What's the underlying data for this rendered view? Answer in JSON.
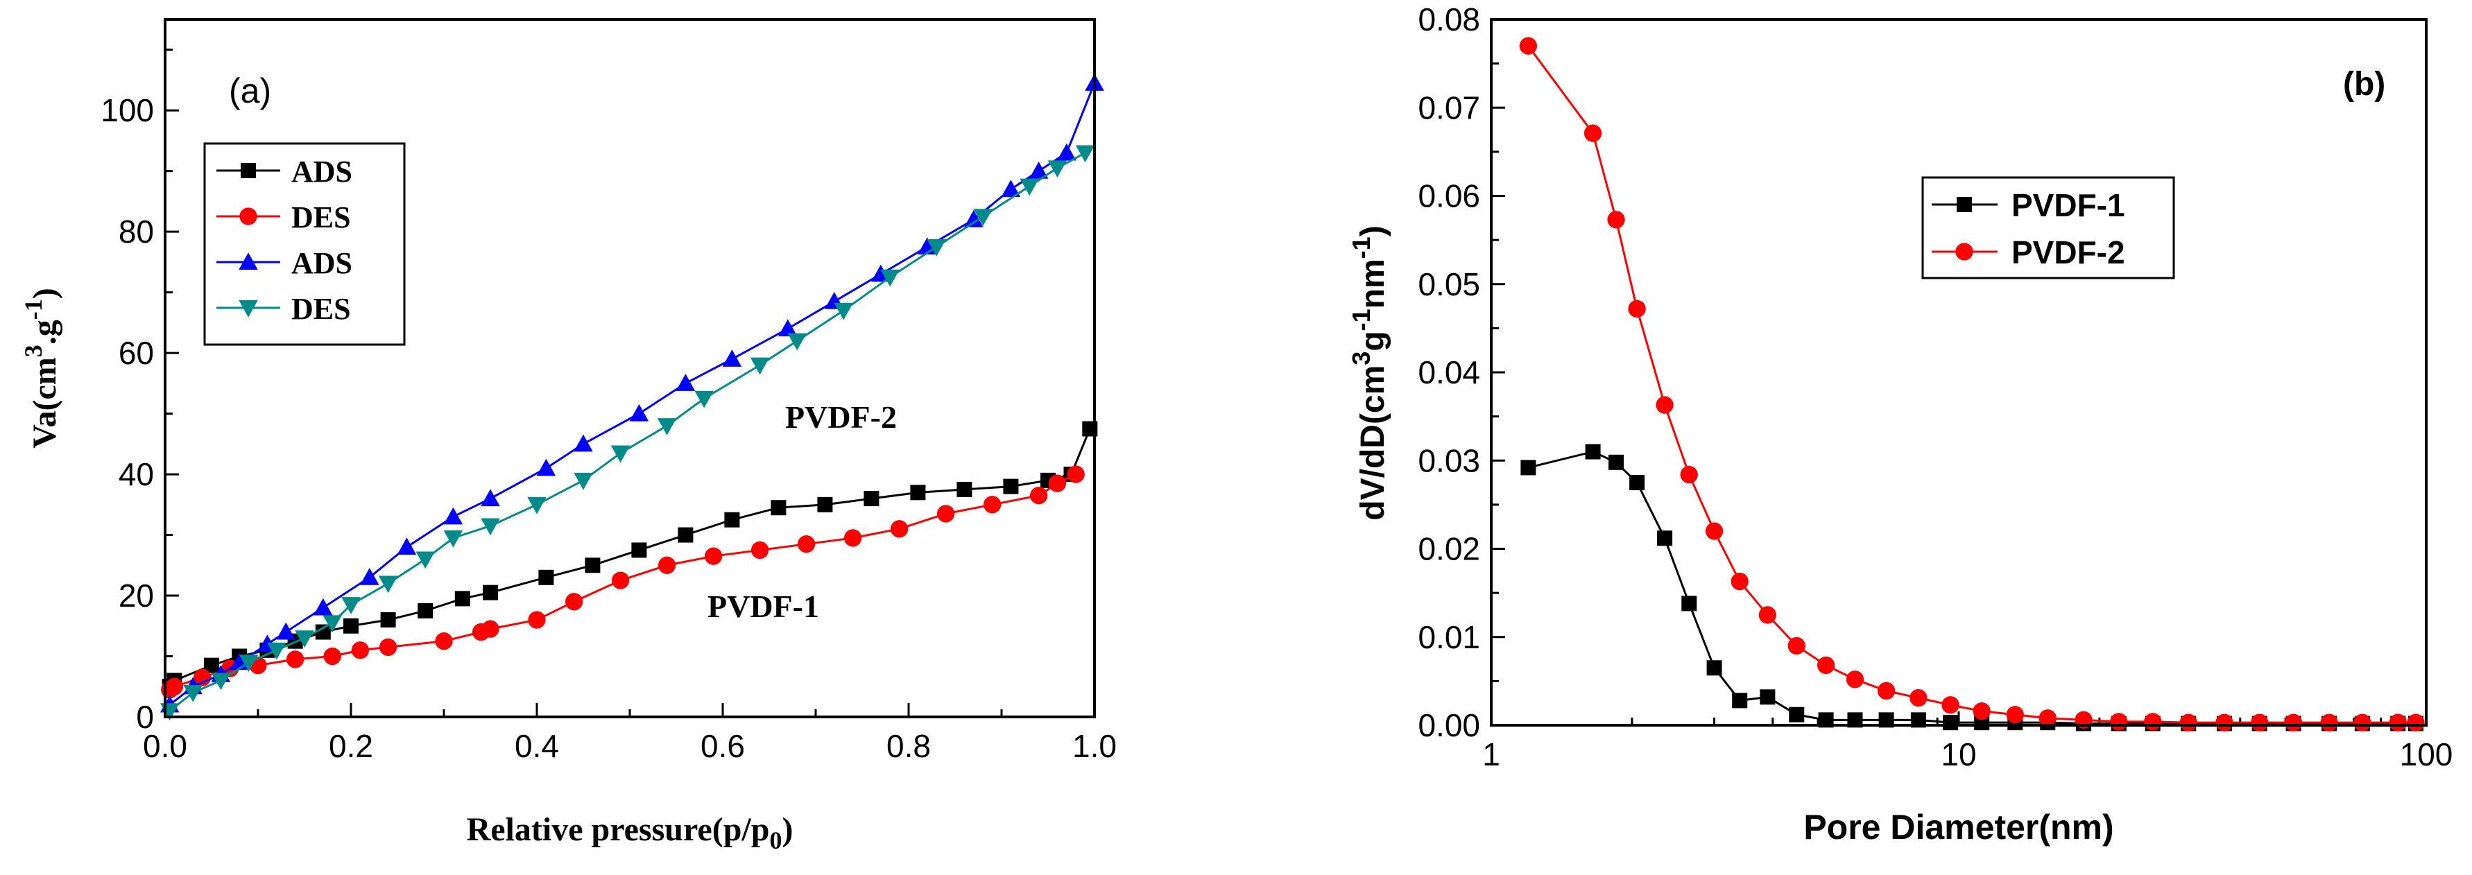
{
  "chart_data": [
    {
      "type": "line",
      "panel_label": "(a)",
      "xlabel_main": "Relative pressure(p/p",
      "xlabel_sub": "0",
      "xlabel_end": ")",
      "ylabel_main": "Va(cm",
      "ylabel_sup": "3",
      "ylabel_mid": ".g",
      "ylabel_sup2": "-1",
      "ylabel_end": ")",
      "xlim": [
        0,
        1.0
      ],
      "ylim": [
        0,
        115
      ],
      "xticks": [
        "0.0",
        "0.2",
        "0.4",
        "0.6",
        "0.8",
        "1.0"
      ],
      "xtick_values": [
        0,
        0.2,
        0.4,
        0.6,
        0.8,
        1.0
      ],
      "yticks": [
        "0",
        "20",
        "40",
        "60",
        "80",
        "100"
      ],
      "ytick_values": [
        0,
        20,
        40,
        60,
        80,
        100
      ],
      "annotations": [
        {
          "text": "PVDF-2",
          "x": 0.69,
          "y": 49
        },
        {
          "text": "PVDF-1",
          "x": 0.63,
          "y": 17
        }
      ],
      "legend_position": "upper-left",
      "series": [
        {
          "name": "ADS",
          "color": "#000000",
          "marker": "square",
          "x": [
            0.005,
            0.01,
            0.05,
            0.08,
            0.11,
            0.14,
            0.17,
            0.2,
            0.24,
            0.28,
            0.32,
            0.35,
            0.41,
            0.46,
            0.51,
            0.56,
            0.61,
            0.66,
            0.71,
            0.76,
            0.81,
            0.86,
            0.91,
            0.95,
            0.975,
            0.995
          ],
          "y": [
            5.0,
            6.0,
            8.5,
            10.0,
            11.0,
            12.5,
            14.0,
            15.0,
            16.0,
            17.5,
            19.5,
            20.5,
            23.0,
            25.0,
            27.5,
            30.0,
            32.5,
            34.5,
            35.0,
            36.0,
            37.0,
            37.5,
            38.0,
            39.0,
            40.0,
            47.5
          ]
        },
        {
          "name": "DES",
          "color": "#ff0000",
          "marker": "circle",
          "x": [
            0.005,
            0.01,
            0.04,
            0.07,
            0.1,
            0.14,
            0.18,
            0.21,
            0.24,
            0.3,
            0.34,
            0.35,
            0.4,
            0.44,
            0.49,
            0.54,
            0.59,
            0.64,
            0.69,
            0.74,
            0.79,
            0.84,
            0.89,
            0.94,
            0.96,
            0.98
          ],
          "y": [
            4.5,
            5.0,
            6.5,
            8.0,
            8.5,
            9.5,
            10.0,
            11.0,
            11.5,
            12.5,
            14.0,
            14.5,
            16.0,
            19.0,
            22.5,
            25.0,
            26.5,
            27.5,
            28.5,
            29.5,
            31.0,
            33.5,
            35.0,
            36.5,
            38.5,
            40.0
          ]
        },
        {
          "name": "ADS",
          "color": "#0000ff",
          "marker": "triangle-up",
          "x": [
            0.005,
            0.03,
            0.06,
            0.08,
            0.11,
            0.13,
            0.17,
            0.22,
            0.26,
            0.31,
            0.35,
            0.41,
            0.45,
            0.51,
            0.56,
            0.61,
            0.67,
            0.72,
            0.77,
            0.82,
            0.87,
            0.91,
            0.94,
            0.97,
            1.0
          ],
          "y": [
            2.0,
            5.0,
            7.0,
            9.0,
            12.0,
            14.0,
            18.0,
            23.0,
            28.0,
            33.0,
            36.0,
            41.0,
            45.0,
            50.0,
            55.0,
            59.0,
            64.0,
            68.5,
            73.0,
            77.5,
            82.0,
            87.0,
            90.0,
            93.0,
            104.5
          ]
        },
        {
          "name": "DES",
          "color": "#008b8b",
          "marker": "triangle-down",
          "x": [
            0.005,
            0.03,
            0.06,
            0.09,
            0.12,
            0.15,
            0.18,
            0.2,
            0.24,
            0.28,
            0.31,
            0.35,
            0.4,
            0.45,
            0.49,
            0.54,
            0.58,
            0.64,
            0.68,
            0.73,
            0.78,
            0.83,
            0.88,
            0.93,
            0.96,
            0.99
          ],
          "y": [
            1.0,
            4.0,
            6.0,
            9.0,
            11.0,
            13.0,
            15.5,
            18.5,
            22.0,
            26.0,
            29.5,
            31.5,
            35.0,
            39.0,
            43.5,
            48.0,
            52.5,
            58.0,
            62.0,
            67.0,
            72.5,
            77.5,
            82.5,
            87.5,
            90.5,
            93.0
          ]
        }
      ]
    },
    {
      "type": "line",
      "panel_label": "(b)",
      "xscale": "log",
      "xlabel": "Pore Diameter(nm)",
      "ylabel_main": "dV/dD(cm",
      "ylabel_sup": "3",
      "ylabel_mid": "g",
      "ylabel_sup2": "-1",
      "ylabel_mid2": "nm",
      "ylabel_sup3": "-1",
      "ylabel_end": ")",
      "xlim": [
        1,
        100
      ],
      "ylim": [
        0,
        0.08
      ],
      "xticks": [
        "1",
        "10",
        "100"
      ],
      "xtick_values": [
        1,
        10,
        100
      ],
      "yticks": [
        "0.00",
        "0.01",
        "0.02",
        "0.03",
        "0.04",
        "0.05",
        "0.06",
        "0.07",
        "0.08"
      ],
      "ytick_values": [
        0,
        0.01,
        0.02,
        0.03,
        0.04,
        0.05,
        0.06,
        0.07,
        0.08
      ],
      "legend_position": "upper-center",
      "series": [
        {
          "name": "PVDF-1",
          "color": "#000000",
          "marker": "square",
          "x": [
            1.2,
            1.65,
            1.85,
            2.05,
            2.35,
            2.65,
            3.0,
            3.4,
            3.9,
            4.5,
            5.2,
            6.0,
            7.0,
            8.2,
            9.6,
            11.2,
            13.2,
            15.5,
            18.5,
            22,
            26,
            31,
            37,
            44,
            52,
            62,
            73,
            87,
            95
          ],
          "y": [
            0.0292,
            0.031,
            0.0298,
            0.0275,
            0.0212,
            0.0138,
            0.0065,
            0.0028,
            0.0032,
            0.0012,
            0.0006,
            0.0006,
            0.0006,
            0.0006,
            0.0003,
            0.0003,
            0.0003,
            0.0003,
            0.0002,
            0.0002,
            0.0002,
            0.0002,
            0.0002,
            0.0002,
            0.0002,
            0.0002,
            0.0002,
            0.0002,
            0.0002
          ]
        },
        {
          "name": "PVDF-2",
          "color": "#ff0000",
          "marker": "circle",
          "x": [
            1.2,
            1.65,
            1.85,
            2.05,
            2.35,
            2.65,
            3.0,
            3.4,
            3.9,
            4.5,
            5.2,
            6.0,
            7.0,
            8.2,
            9.6,
            11.2,
            13.2,
            15.5,
            18.5,
            22,
            26,
            31,
            37,
            44,
            52,
            62,
            73,
            87,
            95
          ],
          "y": [
            0.077,
            0.0671,
            0.0573,
            0.0472,
            0.0363,
            0.0284,
            0.022,
            0.0163,
            0.0125,
            0.009,
            0.0068,
            0.0052,
            0.0039,
            0.0031,
            0.0023,
            0.0016,
            0.0012,
            0.0008,
            0.0006,
            0.0004,
            0.0004,
            0.0003,
            0.0003,
            0.0003,
            0.0003,
            0.0003,
            0.0003,
            0.0003,
            0.0003
          ]
        }
      ]
    }
  ]
}
